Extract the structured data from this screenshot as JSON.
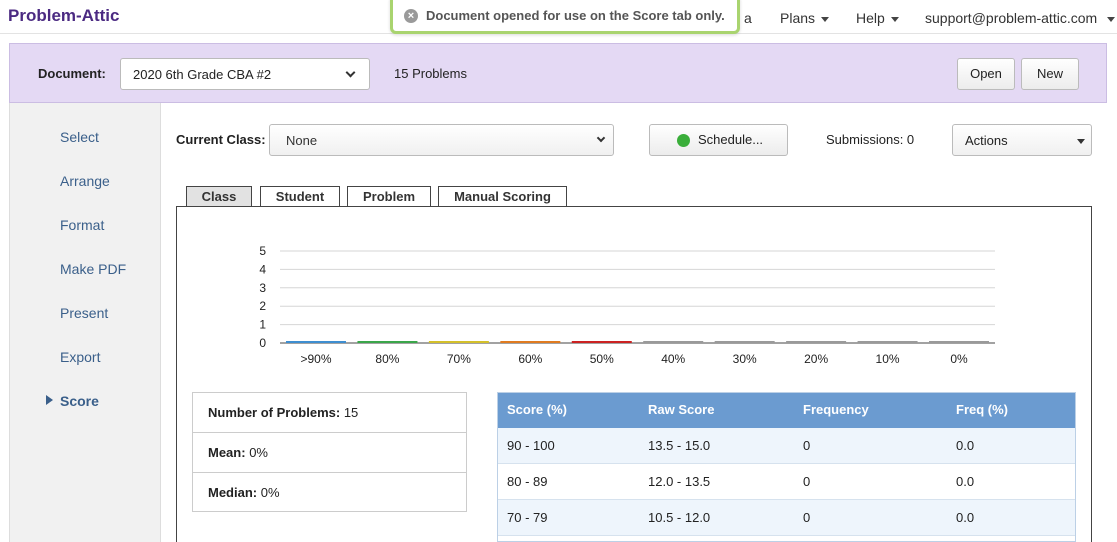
{
  "nav": {
    "brand": "Problem-Attic",
    "partial_item": "a",
    "plans": "Plans",
    "help": "Help",
    "account": "support@problem-attic.com"
  },
  "toast": {
    "message": "Document opened for use on the Score tab only."
  },
  "document": {
    "label": "Document:",
    "selected": "2020 6th Grade CBA #2",
    "count": "15 Problems",
    "open_label": "Open",
    "new_label": "New"
  },
  "sidebar": {
    "items": [
      {
        "label": "Select"
      },
      {
        "label": "Arrange"
      },
      {
        "label": "Format"
      },
      {
        "label": "Make PDF"
      },
      {
        "label": "Present"
      },
      {
        "label": "Export"
      },
      {
        "label": "Score",
        "active": true
      }
    ]
  },
  "controls": {
    "class_label": "Current Class:",
    "class_value": "None",
    "schedule_label": "Schedule...",
    "submissions": "Submissions: 0",
    "actions_label": "Actions"
  },
  "tabs": [
    {
      "label": "Class",
      "active": true
    },
    {
      "label": "Student"
    },
    {
      "label": "Problem"
    },
    {
      "label": "Manual Scoring"
    }
  ],
  "chart_data": {
    "type": "bar",
    "categories": [
      ">90%",
      "80%",
      "70%",
      "60%",
      "50%",
      "40%",
      "30%",
      "20%",
      "10%",
      "0%"
    ],
    "values": [
      0,
      0,
      0,
      0,
      0,
      0,
      0,
      0,
      0,
      0
    ],
    "ylim": [
      0,
      5
    ],
    "yticks": [
      "0",
      "1",
      "2",
      "3",
      "4",
      "5"
    ],
    "grid": true,
    "colors": [
      "#3e8ed0",
      "#3aa64a",
      "#d4c02a",
      "#e07b20",
      "#cc2222",
      "#9a9a9a",
      "#9a9a9a",
      "#9a9a9a",
      "#9a9a9a",
      "#9a9a9a"
    ]
  },
  "stats": {
    "num_problems_label": "Number of Problems:",
    "num_problems": "15",
    "mean_label": "Mean:",
    "mean": "0%",
    "median_label": "Median:",
    "median": "0%"
  },
  "score_table": {
    "headers": [
      "Score (%)",
      "Raw Score",
      "Frequency",
      "Freq (%)"
    ],
    "rows": [
      [
        "90 - 100",
        "13.5 - 15.0",
        "0",
        "0.0"
      ],
      [
        "80 - 89",
        "12.0 - 13.5",
        "0",
        "0.0"
      ],
      [
        "70 - 79",
        "10.5 - 12.0",
        "0",
        "0.0"
      ]
    ]
  }
}
